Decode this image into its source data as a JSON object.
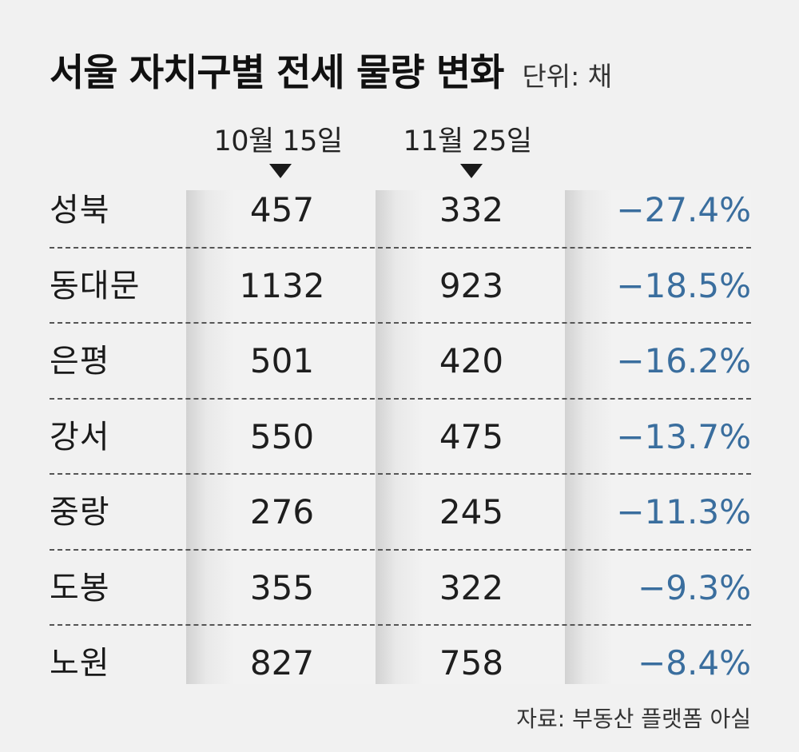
{
  "title": "서울 자치구별 전세 물량 변화",
  "unit": "단위: 채",
  "columns": {
    "date1": "10월 15일",
    "date2": "11월 25일"
  },
  "source": "자료: 부동산 플랫폼 아실",
  "colors": {
    "background": "#f1f1f1",
    "change_text": "#3a6e9e",
    "column_band": "#d2d2d2"
  },
  "chart_data": {
    "type": "table",
    "title": "서울 자치구별 전세 물량 변화",
    "unit": "단위: 채",
    "columns": [
      "10월 15일",
      "11월 25일"
    ],
    "rows": [
      {
        "district": "성북",
        "oct15": "457",
        "nov25": "332",
        "change": "−27.4%"
      },
      {
        "district": "동대문",
        "oct15": "1132",
        "nov25": "923",
        "change": "−18.5%"
      },
      {
        "district": "은평",
        "oct15": "501",
        "nov25": "420",
        "change": "−16.2%"
      },
      {
        "district": "강서",
        "oct15": "550",
        "nov25": "475",
        "change": "−13.7%"
      },
      {
        "district": "중랑",
        "oct15": "276",
        "nov25": "245",
        "change": "−11.3%"
      },
      {
        "district": "도봉",
        "oct15": "355",
        "nov25": "322",
        "change": "−9.3%"
      },
      {
        "district": "노원",
        "oct15": "827",
        "nov25": "758",
        "change": "−8.4%"
      }
    ]
  }
}
